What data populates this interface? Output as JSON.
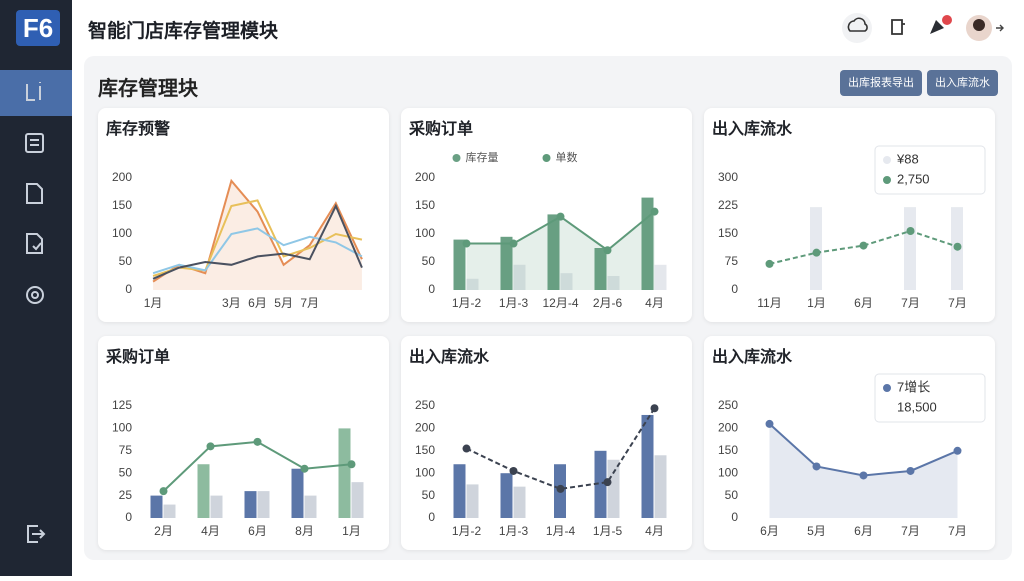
{
  "header": {
    "logo": "F6",
    "title": "智能门店库存管理模块"
  },
  "panel": {
    "title": "库存管理块",
    "buttons": [
      "出库报表导出",
      "出入库流水"
    ]
  },
  "chart_data": [
    {
      "type": "line",
      "title": "库存预警",
      "categories": [
        "1月",
        null,
        null,
        "3月",
        "6月",
        "5月",
        "7月",
        null,
        null
      ],
      "ylim": [
        0,
        200
      ],
      "yticks": [
        0,
        50,
        100,
        150,
        200
      ],
      "markers": false,
      "series": [
        {
          "type": "line",
          "color": "#e58d55",
          "area": true,
          "values": [
            15,
            45,
            30,
            195,
            140,
            45,
            80,
            155,
            55
          ]
        },
        {
          "type": "line",
          "color": "#e8c05a",
          "values": [
            25,
            40,
            35,
            150,
            160,
            60,
            75,
            100,
            90
          ]
        },
        {
          "type": "line",
          "color": "#8fc7e6",
          "values": [
            30,
            45,
            35,
            100,
            110,
            80,
            95,
            85,
            60
          ]
        },
        {
          "type": "line",
          "color": "#4a5160",
          "values": [
            20,
            40,
            50,
            45,
            60,
            65,
            55,
            150,
            40
          ]
        }
      ]
    },
    {
      "type": "combo",
      "title": "采购订单",
      "categories": [
        "1月-2",
        "1月-3",
        "12月-4",
        "2月-6",
        "4月"
      ],
      "ylim": [
        0,
        200
      ],
      "yticks": [
        0,
        50,
        100,
        150,
        200
      ],
      "legend": "top",
      "markers": true,
      "series": [
        {
          "name": "库存量",
          "type": "bar",
          "color": "#6aa084",
          "values": [
            90,
            95,
            135,
            75,
            165
          ]
        },
        {
          "type": "bar",
          "color": "#e4e7ec",
          "values": [
            20,
            45,
            30,
            25,
            45
          ]
        },
        {
          "name": "单数",
          "type": "line",
          "color": "#5e9a7a",
          "area": true,
          "values": [
            83,
            83,
            131,
            71,
            140
          ]
        }
      ]
    },
    {
      "type": "combo",
      "title": "出入库流水",
      "categories": [
        "11月",
        "1月",
        "6月",
        "7月",
        "7月"
      ],
      "ylim": [
        0,
        300
      ],
      "yticks": [
        0,
        75,
        150,
        225,
        300
      ],
      "legend": "top-right",
      "markers": true,
      "series": [
        {
          "name": "¥88",
          "type": "bar",
          "color": "#e6e9ef",
          "values": [
            null,
            222,
            null,
            222,
            222
          ]
        },
        {
          "name": "2,750",
          "type": "line",
          "color": "#5e9a7a",
          "dashed": true,
          "values": [
            70,
            100,
            119,
            158,
            116
          ]
        }
      ]
    },
    {
      "type": "combo",
      "title": "采购订单",
      "categories": [
        "2月",
        "4月",
        "6月",
        "8月",
        "1月"
      ],
      "ylim": [
        0,
        125
      ],
      "yticks": [
        0,
        25,
        50,
        75,
        100,
        125
      ],
      "markers": true,
      "series": [
        {
          "type": "bar",
          "color": "#5b76a8",
          "values": [
            25,
            null,
            30,
            55,
            null
          ]
        },
        {
          "type": "bar",
          "color": "#8dbb9f",
          "values": [
            null,
            60,
            null,
            null,
            100
          ]
        },
        {
          "type": "bar",
          "color": "#cfd4dc",
          "values": [
            15,
            25,
            30,
            25,
            40
          ]
        },
        {
          "type": "line",
          "color": "#5e9a7a",
          "values": [
            30,
            80,
            85,
            55,
            60
          ]
        }
      ]
    },
    {
      "type": "combo",
      "title": "出入库流水",
      "categories": [
        "1月-2",
        "1月-3",
        "1月-4",
        "1月-5",
        "4月"
      ],
      "ylim": [
        0,
        250
      ],
      "yticks": [
        0,
        50,
        100,
        150,
        200,
        250
      ],
      "markers": true,
      "series": [
        {
          "type": "bar",
          "color": "#5b76a8",
          "values": [
            120,
            100,
            120,
            150,
            230
          ]
        },
        {
          "type": "bar",
          "color": "#cfd4dc",
          "values": [
            75,
            70,
            null,
            130,
            140
          ]
        },
        {
          "type": "line",
          "color": "#3b4250",
          "dashed": true,
          "values": [
            155,
            105,
            65,
            80,
            245
          ]
        }
      ]
    },
    {
      "type": "line",
      "title": "出入库流水",
      "categories": [
        "6月",
        "5月",
        "6月",
        "7月",
        "7月"
      ],
      "ylim": [
        0,
        250
      ],
      "yticks": [
        0,
        50,
        100,
        150,
        200,
        250
      ],
      "legend": "top-right",
      "annotation": "18,500",
      "markers": true,
      "series": [
        {
          "name": "7增长",
          "type": "line",
          "color": "#5b76a8",
          "area": true,
          "values": [
            210,
            115,
            95,
            105,
            150
          ]
        }
      ]
    }
  ]
}
